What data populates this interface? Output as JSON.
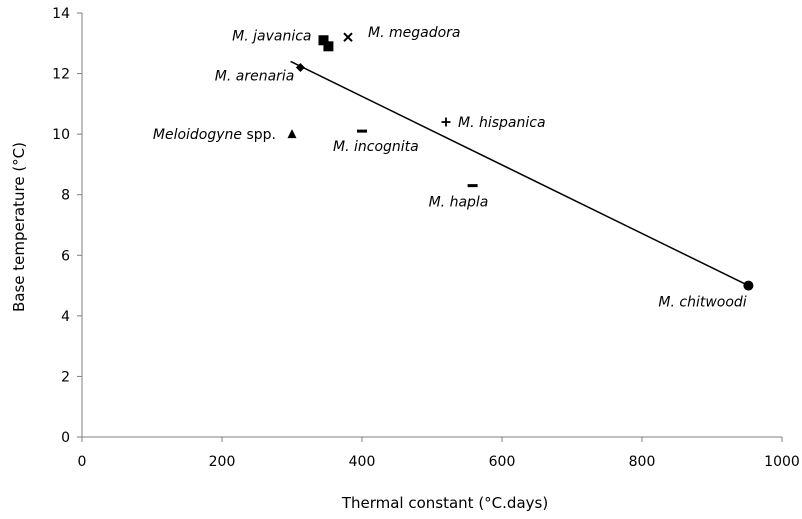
{
  "chart_data": {
    "type": "scatter",
    "xlabel": "Thermal constant  (°C.days)",
    "ylabel": "Base temperature (°C)",
    "xlim": [
      0,
      1000
    ],
    "ylim": [
      0,
      14
    ],
    "xticks": [
      0,
      200,
      400,
      600,
      800,
      1000
    ],
    "yticks": [
      0,
      2,
      4,
      6,
      8,
      10,
      12,
      14
    ],
    "grid": false,
    "points": [
      {
        "label_italic": "M. javanica",
        "label_suffix": "",
        "x": 345,
        "y": 13.1,
        "marker": "square"
      },
      {
        "label_italic": "",
        "label_suffix": "",
        "x": 352,
        "y": 12.9,
        "marker": "square"
      },
      {
        "label_italic": "M. megadora",
        "label_suffix": "",
        "x": 380,
        "y": 13.2,
        "marker": "x"
      },
      {
        "label_italic": "M. arenaria",
        "label_suffix": "",
        "x": 312,
        "y": 12.2,
        "marker": "diamond"
      },
      {
        "label_italic": "Meloidogyne",
        "label_suffix": " spp.",
        "x": 300,
        "y": 10.0,
        "marker": "triangle"
      },
      {
        "label_italic": "M. incognita",
        "label_suffix": "",
        "x": 400,
        "y": 10.1,
        "marker": "dash"
      },
      {
        "label_italic": "M. hispanica",
        "label_suffix": "",
        "x": 520,
        "y": 10.4,
        "marker": "plus"
      },
      {
        "label_italic": "M. hapla",
        "label_suffix": "",
        "x": 558,
        "y": 8.3,
        "marker": "dash"
      },
      {
        "label_italic": "M. chitwoodi",
        "label_suffix": "",
        "x": 952,
        "y": 5.0,
        "marker": "circle"
      }
    ],
    "trendline": {
      "x": [
        298,
        952
      ],
      "y": [
        12.4,
        5.0
      ]
    }
  }
}
